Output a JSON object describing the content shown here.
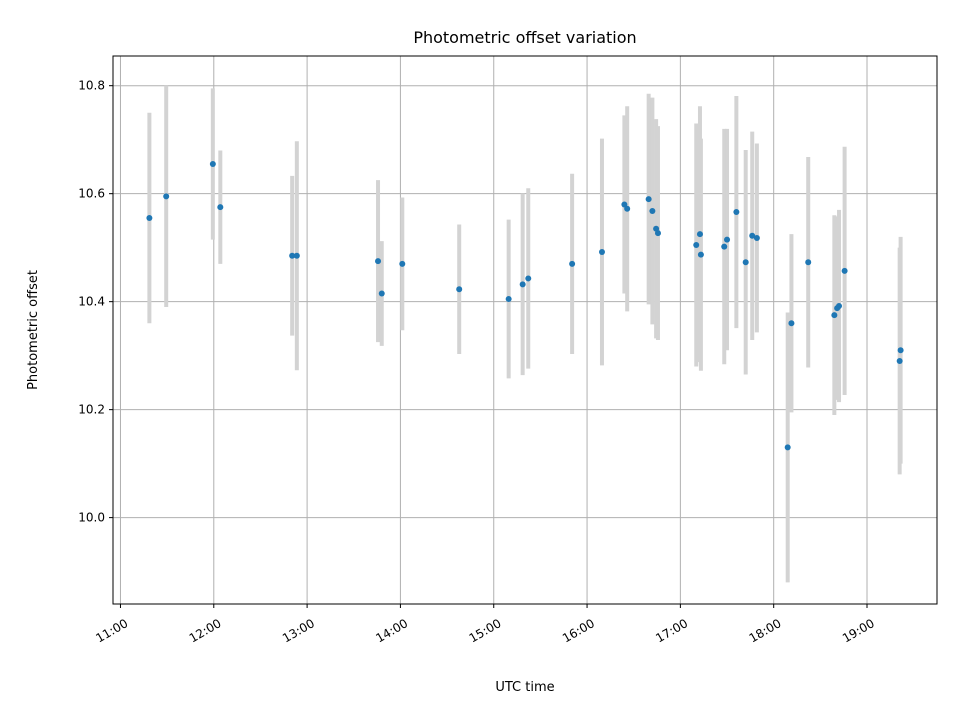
{
  "chart_data": {
    "type": "scatter",
    "title": "Photometric offset variation",
    "xlabel": "UTC time",
    "ylabel": "Photometric offset",
    "x_unit": "hours UTC",
    "xlim": [
      10.92,
      19.75
    ],
    "ylim": [
      9.84,
      10.855
    ],
    "x_ticks": [
      {
        "value": 11,
        "label": "11:00"
      },
      {
        "value": 12,
        "label": "12:00"
      },
      {
        "value": 13,
        "label": "13:00"
      },
      {
        "value": 14,
        "label": "14:00"
      },
      {
        "value": 15,
        "label": "15:00"
      },
      {
        "value": 16,
        "label": "16:00"
      },
      {
        "value": 17,
        "label": "17:00"
      },
      {
        "value": 18,
        "label": "18:00"
      },
      {
        "value": 19,
        "label": "19:00"
      }
    ],
    "y_ticks": [
      {
        "value": 10.0,
        "label": "10.0"
      },
      {
        "value": 10.2,
        "label": "10.2"
      },
      {
        "value": 10.4,
        "label": "10.4"
      },
      {
        "value": 10.6,
        "label": "10.6"
      },
      {
        "value": 10.8,
        "label": "10.8"
      }
    ],
    "grid": true,
    "colors": {
      "point": "#1f77b4",
      "errorbar": "#d3d3d3",
      "grid": "#b0b0b0"
    },
    "points": [
      {
        "x": 11.31,
        "y": 10.555,
        "err": 0.195
      },
      {
        "x": 11.49,
        "y": 10.595,
        "err": 0.205
      },
      {
        "x": 11.99,
        "y": 10.655,
        "err": 0.14
      },
      {
        "x": 12.07,
        "y": 10.575,
        "err": 0.105
      },
      {
        "x": 12.84,
        "y": 10.485,
        "err": 0.148
      },
      {
        "x": 12.89,
        "y": 10.485,
        "err": 0.212
      },
      {
        "x": 13.76,
        "y": 10.475,
        "err": 0.15
      },
      {
        "x": 13.8,
        "y": 10.415,
        "err": 0.097
      },
      {
        "x": 14.02,
        "y": 10.47,
        "err": 0.123
      },
      {
        "x": 14.63,
        "y": 10.423,
        "err": 0.12
      },
      {
        "x": 15.16,
        "y": 10.405,
        "err": 0.147
      },
      {
        "x": 15.31,
        "y": 10.432,
        "err": 0.168
      },
      {
        "x": 15.37,
        "y": 10.443,
        "err": 0.167
      },
      {
        "x": 15.84,
        "y": 10.47,
        "err": 0.167
      },
      {
        "x": 16.16,
        "y": 10.492,
        "err": 0.21
      },
      {
        "x": 16.4,
        "y": 10.58,
        "err": 0.165
      },
      {
        "x": 16.43,
        "y": 10.572,
        "err": 0.19
      },
      {
        "x": 16.66,
        "y": 10.59,
        "err": 0.195
      },
      {
        "x": 16.7,
        "y": 10.568,
        "err": 0.21
      },
      {
        "x": 16.74,
        "y": 10.535,
        "err": 0.203
      },
      {
        "x": 16.76,
        "y": 10.527,
        "err": 0.198
      },
      {
        "x": 17.17,
        "y": 10.505,
        "err": 0.225
      },
      {
        "x": 17.21,
        "y": 10.525,
        "err": 0.237
      },
      {
        "x": 17.22,
        "y": 10.487,
        "err": 0.215
      },
      {
        "x": 17.47,
        "y": 10.502,
        "err": 0.218
      },
      {
        "x": 17.5,
        "y": 10.515,
        "err": 0.205
      },
      {
        "x": 17.6,
        "y": 10.566,
        "err": 0.215
      },
      {
        "x": 17.7,
        "y": 10.473,
        "err": 0.208
      },
      {
        "x": 17.77,
        "y": 10.522,
        "err": 0.193
      },
      {
        "x": 17.82,
        "y": 10.518,
        "err": 0.175
      },
      {
        "x": 18.15,
        "y": 10.13,
        "err": 0.25
      },
      {
        "x": 18.19,
        "y": 10.36,
        "err": 0.165
      },
      {
        "x": 18.37,
        "y": 10.473,
        "err": 0.195
      },
      {
        "x": 18.65,
        "y": 10.375,
        "err": 0.185
      },
      {
        "x": 18.68,
        "y": 10.388,
        "err": 0.17
      },
      {
        "x": 18.7,
        "y": 10.392,
        "err": 0.178
      },
      {
        "x": 18.76,
        "y": 10.457,
        "err": 0.23
      },
      {
        "x": 19.35,
        "y": 10.29,
        "err": 0.21
      },
      {
        "x": 19.36,
        "y": 10.31,
        "err": 0.21
      }
    ]
  }
}
